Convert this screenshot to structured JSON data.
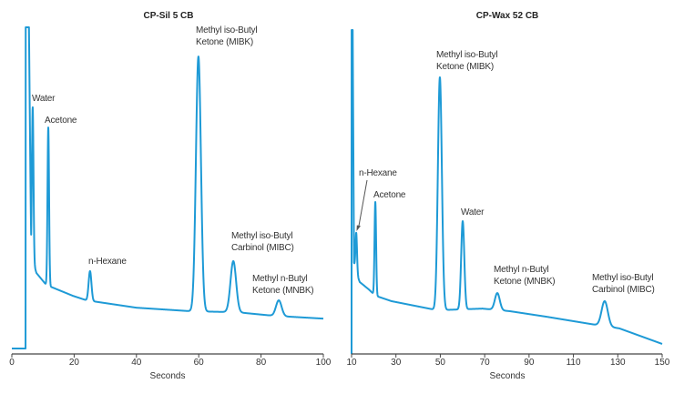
{
  "chart_data": [
    {
      "type": "line",
      "title": "CP-Sil 5 CB",
      "xlabel": "Seconds",
      "ylabel": "",
      "xlim": [
        0,
        100
      ],
      "xticks": [
        "0",
        "20",
        "40",
        "60",
        "80",
        "100"
      ],
      "y_units": "relative detector response (no axis shown)",
      "grid": false,
      "color": "#1e9ad6",
      "baseline": [
        [
          0,
          0
        ],
        [
          4.4,
          0
        ],
        [
          4.45,
          100
        ],
        [
          5.5,
          100
        ],
        [
          6.2,
          29
        ],
        [
          7.9,
          23.5
        ],
        [
          10.8,
          20.1
        ],
        [
          12.3,
          19.3
        ],
        [
          19.6,
          16.4
        ],
        [
          24,
          15
        ],
        [
          40,
          12.7
        ],
        [
          57.6,
          11.6
        ],
        [
          72.2,
          11.3
        ],
        [
          83.9,
          10.2
        ],
        [
          100,
          9.3
        ]
      ],
      "peaks": [
        {
          "name": "Water",
          "label": [
            "Water"
          ],
          "time": 6.7,
          "apex": 75.1,
          "width": 0.25
        },
        {
          "name": "Acetone",
          "label": [
            "Acetone"
          ],
          "time": 11.7,
          "apex": 68.8,
          "width": 0.25
        },
        {
          "name": "n-Hexane",
          "label": [
            "n-Hexane"
          ],
          "time": 25.1,
          "apex": 24.1,
          "width": 0.45
        },
        {
          "name": "MIBK",
          "label": [
            "Methyl iso-Butyl",
            "Ketone (MIBK)"
          ],
          "time": 59.9,
          "apex": 90.9,
          "width": 0.8
        },
        {
          "name": "MIBC",
          "label": [
            "Methyl iso-Butyl",
            "Carbinol (MIBC)"
          ],
          "time": 71.1,
          "apex": 27.2,
          "width": 0.9
        },
        {
          "name": "MNBK",
          "label": [
            "Methyl n-Butyl",
            "Ketone (MNBK)"
          ],
          "time": 85.7,
          "apex": 15.0,
          "width": 0.9
        }
      ]
    },
    {
      "type": "line",
      "title": "CP-Wax 52 CB",
      "xlabel": "Seconds",
      "ylabel": "",
      "xlim": [
        10,
        150
      ],
      "xticks": [
        "10",
        "30",
        "50",
        "70",
        "90",
        "110",
        "130",
        "150"
      ],
      "y_units": "relative detector response (no axis shown)",
      "grid": false,
      "color": "#1e9ad6",
      "baseline": [
        [
          10,
          0
        ],
        [
          10.02,
          100
        ],
        [
          10.5,
          100
        ],
        [
          11.1,
          28
        ],
        [
          11.6,
          25.8
        ],
        [
          13.7,
          22.2
        ],
        [
          17.8,
          19.9
        ],
        [
          20.7,
          18
        ],
        [
          28,
          16.3
        ],
        [
          48.6,
          13.5
        ],
        [
          69,
          14
        ],
        [
          81.4,
          13.2
        ],
        [
          97.8,
          11.5
        ],
        [
          120,
          9
        ],
        [
          130.7,
          7.9
        ],
        [
          150,
          3.1
        ]
      ],
      "peaks": [
        {
          "name": "n-Hexane",
          "label": [
            "n-Hexane"
          ],
          "time": 12.1,
          "apex": 37.4,
          "width": 0.35
        },
        {
          "name": "Acetone",
          "label": [
            "Acetone"
          ],
          "time": 20.7,
          "apex": 46.9,
          "width": 0.35
        },
        {
          "name": "MIBK",
          "label": [
            "Methyl iso-Butyl",
            "Ketone (MIBK)"
          ],
          "time": 49.8,
          "apex": 85.4,
          "width": 0.9
        },
        {
          "name": "Water",
          "label": [
            "Water"
          ],
          "time": 60.1,
          "apex": 41.0,
          "width": 0.7
        },
        {
          "name": "MNBK",
          "label": [
            "Methyl n-Butyl",
            "Ketone (MNBK)"
          ],
          "time": 75.7,
          "apex": 18.8,
          "width": 1.1
        },
        {
          "name": "MIBC",
          "label": [
            "Methyl iso-Butyl",
            "Carbinol (MIBC)"
          ],
          "time": 124.1,
          "apex": 16.3,
          "width": 1.4
        }
      ]
    }
  ]
}
